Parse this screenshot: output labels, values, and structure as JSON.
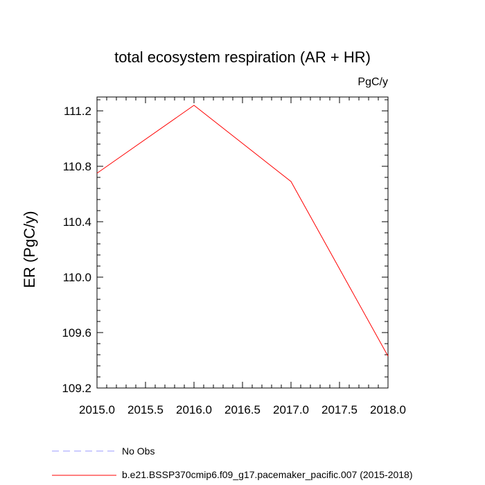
{
  "chart_data": {
    "type": "line",
    "title": "total ecosystem respiration (AR + HR)",
    "units": "PgC/y",
    "ylabel": "ER  (PgC/y)",
    "xlabel": "",
    "xlim": [
      2015.0,
      2018.0
    ],
    "ylim": [
      109.2,
      111.3
    ],
    "x_ticks": [
      2015.0,
      2015.5,
      2016.0,
      2016.5,
      2017.0,
      2017.5,
      2018.0
    ],
    "x_tick_labels": [
      "2015.0",
      "2015.5",
      "2016.0",
      "2016.5",
      "2017.0",
      "2017.5",
      "2018.0"
    ],
    "y_ticks": [
      109.2,
      109.6,
      110.0,
      110.4,
      110.8,
      111.2
    ],
    "y_tick_labels": [
      "109.2",
      "109.6",
      "110.0",
      "110.4",
      "110.8",
      "111.2"
    ],
    "y_minor_step": 0.08,
    "x_minor_step": 0.1,
    "series": [
      {
        "name": "b.e21.BSSP370cmip6.f09_g17.pacemaker_pacific.007 (2015-2018)",
        "color": "#ff0000",
        "dash": "solid",
        "x": [
          2015.0,
          2016.0,
          2017.0,
          2018.0
        ],
        "values": [
          110.75,
          111.24,
          110.69,
          109.43
        ]
      }
    ],
    "legend": [
      {
        "label": "No Obs",
        "color": "#9999ff",
        "dash": "dashed"
      },
      {
        "label": "b.e21.BSSP370cmip6.f09_g17.pacemaker_pacific.007 (2015-2018)",
        "color": "#ff0000",
        "dash": "solid"
      }
    ]
  }
}
